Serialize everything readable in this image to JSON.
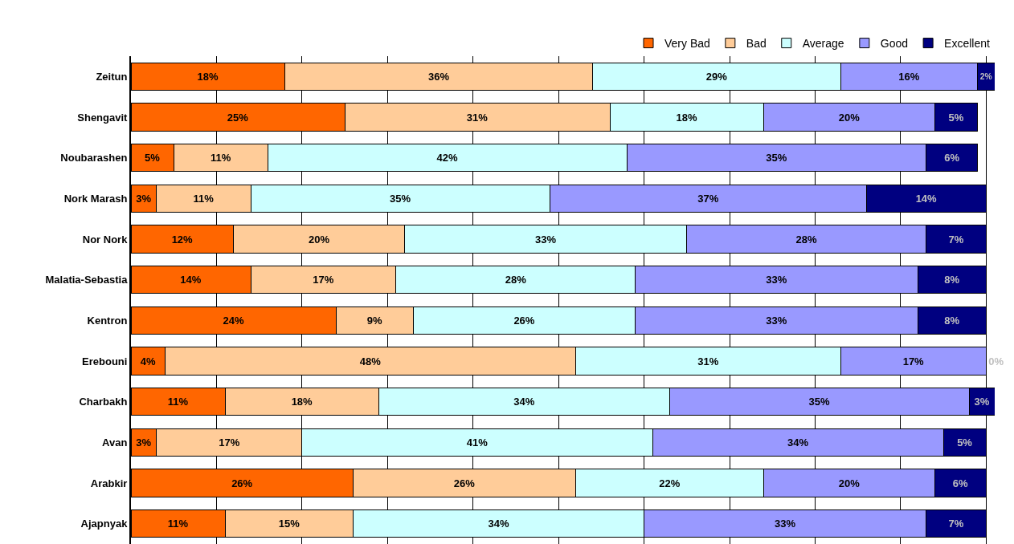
{
  "chart_data": {
    "type": "bar",
    "orientation": "horizontal",
    "stacked": true,
    "categories": [
      "Zeitun",
      "Shengavit",
      "Noubarashen",
      "Nork Marash",
      "Nor Nork",
      "Malatia-Sebastia",
      "Kentron",
      "Erebouni",
      "Charbakh",
      "Avan",
      "Arabkir",
      "Ajapnyak"
    ],
    "series": [
      {
        "name": "Very Bad",
        "color": "#ff6600",
        "values": [
          18,
          25,
          5,
          3,
          12,
          14,
          24,
          4,
          11,
          3,
          26,
          11
        ],
        "value_labels": [
          "18%",
          "25%",
          "5%",
          "3%",
          "12%",
          "14%",
          "24%",
          "4%",
          "11%",
          "3%",
          "26%",
          "11%"
        ]
      },
      {
        "name": "Bad",
        "color": "#ffcc99",
        "values": [
          36,
          31,
          11,
          11,
          20,
          17,
          9,
          48,
          18,
          17,
          26,
          15
        ],
        "value_labels": [
          "36%",
          "31%",
          "11%",
          "11%",
          "20%",
          "17%",
          "9%",
          "48%",
          "18%",
          "17%",
          "26%",
          "15%"
        ]
      },
      {
        "name": "Average",
        "color": "#ccffff",
        "values": [
          29,
          18,
          42,
          35,
          33,
          28,
          26,
          31,
          34,
          41,
          22,
          34
        ],
        "value_labels": [
          "29%",
          "18%",
          "42%",
          "35%",
          "33%",
          "28%",
          "26%",
          "31%",
          "34%",
          "41%",
          "22%",
          "34%"
        ]
      },
      {
        "name": "Good",
        "color": "#9999ff",
        "values": [
          16,
          20,
          35,
          37,
          28,
          33,
          33,
          17,
          35,
          34,
          20,
          33
        ],
        "value_labels": [
          "16%",
          "20%",
          "35%",
          "37%",
          "28%",
          "33%",
          "33%",
          "17%",
          "35%",
          "34%",
          "20%",
          "33%"
        ]
      },
      {
        "name": "Excellent",
        "color": "#000080",
        "values": [
          2,
          5,
          6,
          14,
          7,
          8,
          8,
          0,
          3,
          5,
          6,
          7
        ],
        "value_labels": [
          "2%",
          "5%",
          "6%",
          "14%",
          "7%",
          "8%",
          "8%",
          "0%",
          "3%",
          "5%",
          "6%",
          "7%"
        ]
      }
    ],
    "xlim": [
      0,
      101
    ],
    "xticks": [
      {
        "value": 0,
        "label": null
      },
      {
        "value": 10,
        "label": null
      },
      {
        "value": 20,
        "label": null
      },
      {
        "value": 30,
        "label": null
      },
      {
        "value": 40,
        "label": null
      },
      {
        "value": 50,
        "label": null
      },
      {
        "value": 60,
        "label": null
      },
      {
        "value": 70,
        "label": null
      },
      {
        "value": 80,
        "label": null
      },
      {
        "value": 90,
        "label": null
      },
      {
        "value": 100,
        "label": null
      }
    ],
    "tick_labels": "y",
    "grid": "x",
    "legend": "top right"
  }
}
